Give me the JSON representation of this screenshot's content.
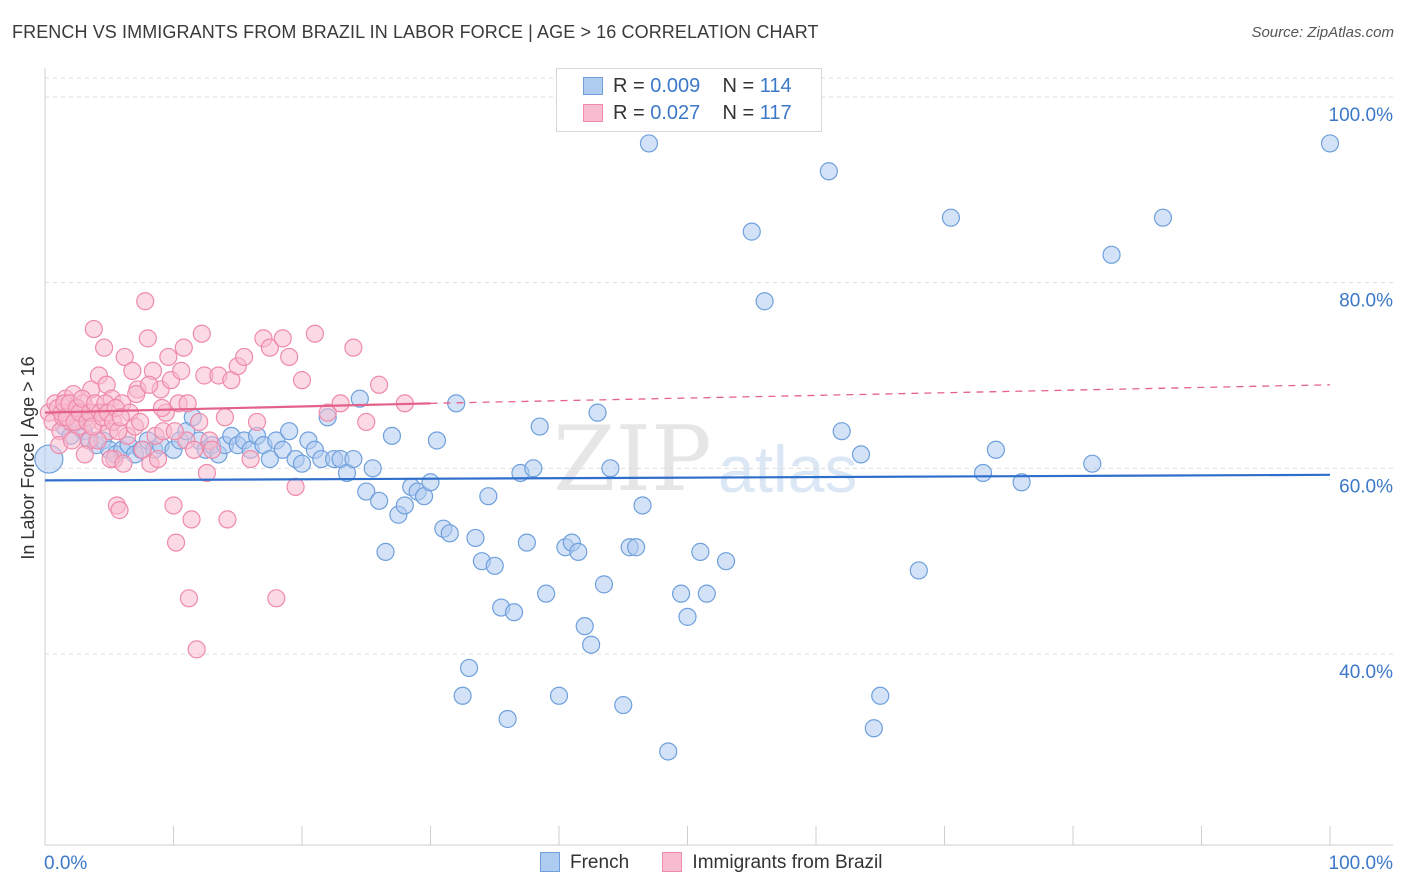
{
  "title": "FRENCH VS IMMIGRANTS FROM BRAZIL IN LABOR FORCE | AGE > 16 CORRELATION CHART",
  "source": "Source: ZipAtlas.com",
  "watermark": {
    "zip": "ZIP",
    "atlas": "atlas"
  },
  "colors": {
    "french": "#6fa0dc",
    "french_fill": "#aecbf0",
    "french_line": "#2f6fcc",
    "brazil": "#ef8aaa",
    "brazil_fill": "#f7bcd0",
    "brazil_line": "#e4628a",
    "axis_text": "#3c78c8",
    "grid": "#dcdcdc"
  },
  "legend": {
    "french": {
      "r_label": "R =",
      "r_value": "0.009",
      "n_label": "N =",
      "n_value": "114"
    },
    "brazil": {
      "r_label": "R =",
      "r_value": "0.027",
      "n_label": "N =",
      "n_value": "117"
    }
  },
  "chart_data": {
    "type": "scatter",
    "title": "FRENCH VS IMMIGRANTS FROM BRAZIL IN LABOR FORCE | AGE > 16 CORRELATION CHART",
    "xlabel": "",
    "ylabel": "In Labor Force | Age > 16",
    "xlim": [
      0,
      100
    ],
    "ylim": [
      20,
      104
    ],
    "x_tick_labels": [
      "0.0%",
      "100.0%"
    ],
    "y_ticks": [
      40,
      60,
      80,
      100
    ],
    "y_tick_labels": [
      "40.0%",
      "60.0%",
      "80.0%",
      "100.0%"
    ],
    "grid": true,
    "legend_position": "top-center",
    "series": [
      {
        "name": "French",
        "trend": {
          "x": [
            0,
            100
          ],
          "y": [
            58.7,
            59.3
          ],
          "style": "solid"
        },
        "points": [
          [
            0.3,
            61.0
          ],
          [
            1.5,
            64.5
          ],
          [
            2.0,
            63.5
          ],
          [
            2.5,
            65.0
          ],
          [
            3.0,
            64.0
          ],
          [
            3.5,
            63.0
          ],
          [
            4.0,
            62.5
          ],
          [
            4.5,
            63.0
          ],
          [
            5.0,
            62.0
          ],
          [
            5.5,
            61.5
          ],
          [
            6.0,
            62.0
          ],
          [
            6.5,
            62.5
          ],
          [
            7.0,
            61.5
          ],
          [
            7.5,
            62.0
          ],
          [
            8.0,
            63.0
          ],
          [
            8.5,
            62.0
          ],
          [
            9.0,
            62.5
          ],
          [
            10.0,
            62.0
          ],
          [
            10.5,
            63.0
          ],
          [
            11.0,
            64.0
          ],
          [
            11.5,
            65.5
          ],
          [
            12.0,
            63.0
          ],
          [
            12.5,
            62.0
          ],
          [
            13.0,
            62.5
          ],
          [
            13.5,
            61.5
          ],
          [
            14.0,
            62.5
          ],
          [
            14.5,
            63.5
          ],
          [
            15.0,
            62.5
          ],
          [
            15.5,
            63.0
          ],
          [
            16.0,
            62.0
          ],
          [
            16.5,
            63.5
          ],
          [
            17.0,
            62.5
          ],
          [
            17.5,
            61.0
          ],
          [
            18.0,
            63.0
          ],
          [
            18.5,
            62.0
          ],
          [
            19.0,
            64.0
          ],
          [
            19.5,
            61.0
          ],
          [
            20.0,
            60.5
          ],
          [
            20.5,
            63.0
          ],
          [
            21.0,
            62.0
          ],
          [
            21.5,
            61.0
          ],
          [
            22.0,
            65.5
          ],
          [
            22.5,
            61.0
          ],
          [
            23.0,
            61.0
          ],
          [
            23.5,
            59.5
          ],
          [
            24.0,
            61.0
          ],
          [
            24.5,
            67.5
          ],
          [
            25.0,
            57.5
          ],
          [
            25.5,
            60.0
          ],
          [
            26.0,
            56.5
          ],
          [
            26.5,
            51.0
          ],
          [
            27.0,
            63.5
          ],
          [
            27.5,
            55.0
          ],
          [
            28.0,
            56.0
          ],
          [
            28.5,
            58.0
          ],
          [
            29.0,
            57.5
          ],
          [
            29.5,
            57.0
          ],
          [
            30.0,
            58.5
          ],
          [
            30.5,
            63.0
          ],
          [
            31.0,
            53.5
          ],
          [
            31.5,
            53.0
          ],
          [
            32.0,
            67.0
          ],
          [
            32.5,
            35.5
          ],
          [
            33.0,
            38.5
          ],
          [
            33.5,
            52.5
          ],
          [
            34.0,
            50.0
          ],
          [
            34.5,
            57.0
          ],
          [
            35.0,
            49.5
          ],
          [
            35.5,
            45.0
          ],
          [
            36.0,
            33.0
          ],
          [
            36.5,
            44.5
          ],
          [
            37.0,
            59.5
          ],
          [
            37.5,
            52.0
          ],
          [
            38.0,
            60.0
          ],
          [
            38.5,
            64.5
          ],
          [
            39.0,
            46.5
          ],
          [
            40.0,
            35.5
          ],
          [
            40.5,
            51.5
          ],
          [
            41.0,
            52.0
          ],
          [
            41.5,
            51.0
          ],
          [
            42.0,
            43.0
          ],
          [
            42.5,
            41.0
          ],
          [
            43.0,
            66.0
          ],
          [
            43.5,
            47.5
          ],
          [
            44.0,
            60.0
          ],
          [
            45.0,
            34.5
          ],
          [
            45.5,
            51.5
          ],
          [
            46.0,
            51.5
          ],
          [
            46.5,
            56.0
          ],
          [
            47.0,
            95.0
          ],
          [
            48.5,
            29.5
          ],
          [
            49.5,
            46.5
          ],
          [
            50.0,
            44.0
          ],
          [
            51.0,
            51.0
          ],
          [
            51.5,
            46.5
          ],
          [
            53.0,
            50.0
          ],
          [
            55.0,
            85.5
          ],
          [
            56.0,
            78.0
          ],
          [
            61.0,
            92.0
          ],
          [
            62.0,
            64.0
          ],
          [
            64.5,
            32.0
          ],
          [
            65.0,
            35.5
          ],
          [
            68.0,
            49.0
          ],
          [
            70.5,
            87.0
          ],
          [
            73.0,
            59.5
          ],
          [
            74.0,
            62.0
          ],
          [
            76.0,
            58.5
          ],
          [
            81.5,
            60.5
          ],
          [
            83.0,
            83.0
          ],
          [
            87.0,
            87.0
          ],
          [
            100.0,
            95.0
          ],
          [
            63.5,
            61.5
          ]
        ]
      },
      {
        "name": "Immigrants from Brazil",
        "trend": {
          "x": [
            0,
            30,
            100
          ],
          "y": [
            66.0,
            67.0,
            69.0
          ],
          "style": "solid-then-dashed",
          "dash_from": 30
        },
        "points": [
          [
            0.3,
            66.0
          ],
          [
            0.6,
            65.0
          ],
          [
            0.8,
            67.0
          ],
          [
            1.0,
            66.5
          ],
          [
            1.2,
            64.0
          ],
          [
            1.4,
            65.5
          ],
          [
            1.6,
            67.5
          ],
          [
            1.8,
            66.0
          ],
          [
            2.0,
            65.0
          ],
          [
            2.2,
            68.0
          ],
          [
            2.4,
            66.5
          ],
          [
            2.6,
            64.5
          ],
          [
            2.8,
            66.0
          ],
          [
            3.0,
            67.0
          ],
          [
            3.2,
            65.5
          ],
          [
            3.4,
            63.0
          ],
          [
            3.6,
            68.5
          ],
          [
            3.8,
            75.0
          ],
          [
            4.0,
            66.0
          ],
          [
            4.2,
            70.0
          ],
          [
            4.4,
            65.0
          ],
          [
            4.6,
            73.0
          ],
          [
            4.8,
            69.0
          ],
          [
            5.0,
            64.0
          ],
          [
            5.2,
            67.5
          ],
          [
            5.4,
            61.0
          ],
          [
            5.6,
            56.0
          ],
          [
            5.8,
            55.5
          ],
          [
            6.0,
            67.0
          ],
          [
            6.2,
            72.0
          ],
          [
            6.4,
            63.5
          ],
          [
            6.6,
            66.0
          ],
          [
            6.8,
            70.5
          ],
          [
            7.0,
            64.5
          ],
          [
            7.2,
            68.5
          ],
          [
            7.4,
            65.0
          ],
          [
            7.6,
            62.0
          ],
          [
            7.8,
            78.0
          ],
          [
            8.0,
            74.0
          ],
          [
            8.2,
            60.5
          ],
          [
            8.4,
            70.5
          ],
          [
            8.6,
            63.5
          ],
          [
            8.8,
            61.0
          ],
          [
            9.0,
            68.5
          ],
          [
            9.2,
            64.0
          ],
          [
            9.4,
            66.0
          ],
          [
            9.6,
            72.0
          ],
          [
            9.8,
            69.5
          ],
          [
            10.0,
            56.0
          ],
          [
            10.2,
            52.0
          ],
          [
            10.4,
            67.0
          ],
          [
            10.6,
            70.5
          ],
          [
            10.8,
            73.0
          ],
          [
            11.0,
            63.0
          ],
          [
            11.2,
            46.0
          ],
          [
            11.4,
            54.5
          ],
          [
            11.6,
            62.0
          ],
          [
            11.8,
            40.5
          ],
          [
            12.0,
            65.0
          ],
          [
            12.2,
            74.5
          ],
          [
            12.4,
            70.0
          ],
          [
            12.6,
            59.5
          ],
          [
            12.8,
            63.0
          ],
          [
            13.0,
            62.0
          ],
          [
            13.5,
            70.0
          ],
          [
            14.0,
            65.5
          ],
          [
            14.2,
            54.5
          ],
          [
            14.5,
            69.5
          ],
          [
            15.0,
            71.0
          ],
          [
            15.5,
            72.0
          ],
          [
            16.0,
            61.0
          ],
          [
            16.5,
            65.0
          ],
          [
            17.0,
            74.0
          ],
          [
            17.5,
            73.0
          ],
          [
            18.0,
            46.0
          ],
          [
            18.5,
            74.0
          ],
          [
            19.0,
            72.0
          ],
          [
            19.5,
            58.0
          ],
          [
            20.0,
            69.5
          ],
          [
            21.0,
            74.5
          ],
          [
            22.0,
            66.0
          ],
          [
            23.0,
            67.0
          ],
          [
            24.0,
            73.0
          ],
          [
            25.0,
            65.0
          ],
          [
            26.0,
            69.0
          ],
          [
            28.0,
            67.0
          ],
          [
            1.1,
            62.5
          ],
          [
            2.1,
            63.0
          ],
          [
            3.1,
            61.5
          ],
          [
            4.1,
            63.0
          ],
          [
            5.1,
            61.0
          ],
          [
            6.1,
            60.5
          ],
          [
            7.1,
            68.0
          ],
          [
            8.1,
            69.0
          ],
          [
            9.1,
            66.5
          ],
          [
            10.1,
            64.0
          ],
          [
            11.1,
            67.0
          ],
          [
            1.3,
            66.0
          ],
          [
            1.5,
            67.0
          ],
          [
            1.7,
            65.5
          ],
          [
            1.9,
            67.0
          ],
          [
            2.3,
            65.0
          ],
          [
            2.5,
            66.5
          ],
          [
            2.7,
            66.0
          ],
          [
            2.9,
            67.5
          ],
          [
            3.3,
            65.0
          ],
          [
            3.5,
            66.0
          ],
          [
            3.7,
            64.5
          ],
          [
            3.9,
            67.0
          ],
          [
            4.3,
            66.0
          ],
          [
            4.5,
            65.5
          ],
          [
            4.7,
            67.0
          ],
          [
            4.9,
            66.0
          ],
          [
            5.3,
            65.0
          ],
          [
            5.5,
            66.5
          ],
          [
            5.7,
            64.0
          ],
          [
            5.9,
            65.5
          ]
        ]
      }
    ]
  },
  "bottom_legend": {
    "french": "French",
    "brazil": "Immigrants from Brazil"
  }
}
